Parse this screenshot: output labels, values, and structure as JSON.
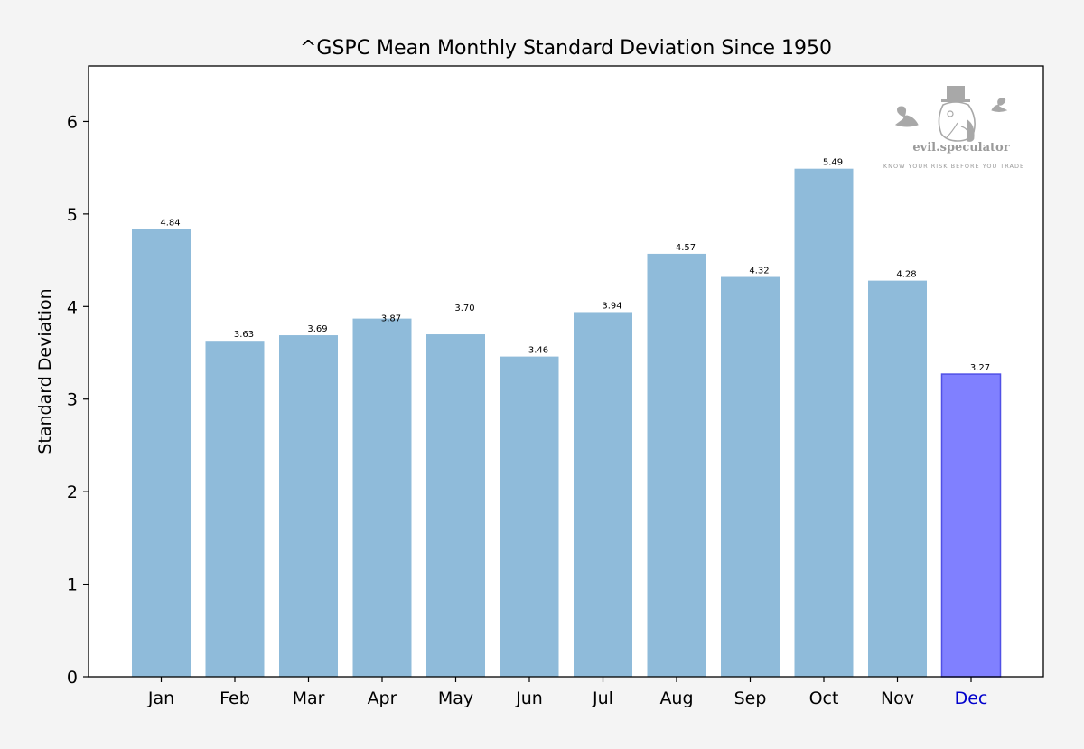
{
  "chart_data": {
    "type": "bar",
    "title": "^GSPC Mean Monthly Standard Deviation Since 1950",
    "xlabel": "",
    "ylabel": "Standard Deviation",
    "categories": [
      "Jan",
      "Feb",
      "Mar",
      "Apr",
      "May",
      "Jun",
      "Jul",
      "Aug",
      "Sep",
      "Oct",
      "Nov",
      "Dec"
    ],
    "values": [
      4.84,
      3.63,
      3.69,
      3.87,
      3.7,
      3.46,
      3.94,
      4.57,
      4.32,
      5.49,
      4.28,
      3.27
    ],
    "value_labels": [
      "4.84",
      "3.63",
      "3.69",
      "3.87",
      "3.70",
      "3.46",
      "3.94",
      "4.57",
      "4.32",
      "5.49",
      "4.28",
      "3.27"
    ],
    "highlight_index": 11,
    "ylim": [
      0,
      6.6
    ],
    "yticks": [
      0,
      1,
      2,
      3,
      4,
      5,
      6
    ],
    "grid": false,
    "legend": "none",
    "colors": {
      "bar": "#8fbbda",
      "highlight_bar": "#8080ff",
      "highlight_edge": "#5050e6",
      "highlight_tick": "#0000cc",
      "axes": "#000000",
      "background": "#ffffff",
      "figure_background": "#f4f4f4"
    }
  },
  "watermark": {
    "brand": "evil.speculator",
    "tagline": "KNOW YOUR RISK BEFORE YOU TRADE",
    "icon": "top-hat-speculator-logo-icon"
  }
}
